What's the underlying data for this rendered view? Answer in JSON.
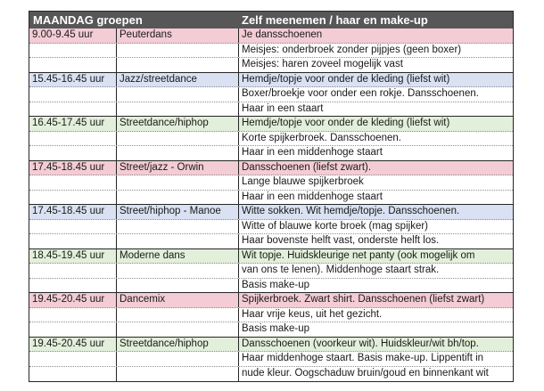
{
  "table": {
    "header": {
      "left": "MAANDAG groepen",
      "right": "Zelf meenemen / haar en make-up"
    },
    "colors": {
      "header_bg": "#575757",
      "header_text": "#ffffff",
      "pink": "#f3ccd5",
      "blue": "#d9e1f2",
      "green": "#e2efda",
      "white": "#ffffff"
    },
    "rows": [
      {
        "time": "9.00-9.45 uur",
        "group": "Peuterdans",
        "item": "Je dansschoenen",
        "fill": "pink",
        "group_start": true
      },
      {
        "time": "",
        "group": "",
        "item": "Meisjes: onderbroek zonder pijpjes (geen boxer)",
        "fill": "white"
      },
      {
        "time": "",
        "group": "",
        "item": "Meisjes: haren zoveel mogelijk vast",
        "fill": "white"
      },
      {
        "time": "15.45-16.45 uur",
        "group": "Jazz/streetdance",
        "item": "Hemdje/topje voor onder de kleding (liefst wit)",
        "fill": "blue",
        "group_start": true
      },
      {
        "time": "",
        "group": "",
        "item": "Boxer/broekje voor onder een rokje. Dansschoenen.",
        "fill": "white"
      },
      {
        "time": "",
        "group": "",
        "item": "Haar in een staart",
        "fill": "white"
      },
      {
        "time": "16.45-17.45 uur",
        "group": "Streetdance/hiphop",
        "item": "Hemdje/topje voor onder de kleding (liefst wit)",
        "fill": "green",
        "group_start": true
      },
      {
        "time": "",
        "group": "",
        "item": "Korte spijkerbroek. Dansschoenen.",
        "fill": "white"
      },
      {
        "time": "",
        "group": "",
        "item": "Haar in een middenhoge staart",
        "fill": "white"
      },
      {
        "time": "17.45-18.45 uur",
        "group": "Street/jazz - Orwin",
        "item": "Dansschoenen (liefst zwart).",
        "fill": "pink",
        "group_start": true
      },
      {
        "time": "",
        "group": "",
        "item": "Lange blauwe spijkerbroek",
        "fill": "white"
      },
      {
        "time": "",
        "group": "",
        "item": "Haar in een middenhoge staart",
        "fill": "white"
      },
      {
        "time": "17.45-18.45 uur",
        "group": "Street/hiphop - Manoe",
        "item": "Witte sokken. Wit hemdje/topje. Dansschoenen.",
        "fill": "blue",
        "group_start": true
      },
      {
        "time": "",
        "group": "",
        "item": "Witte of blauwe korte broek (mag spijker)",
        "fill": "white"
      },
      {
        "time": "",
        "group": "",
        "item": "Haar bovenste helft vast, onderste helft los.",
        "fill": "white"
      },
      {
        "time": "18.45-19.45 uur",
        "group": "Moderne dans",
        "item": "Wit topje. Huidskleurige net panty (ook mogelijk om",
        "fill": "green",
        "group_start": true
      },
      {
        "time": "",
        "group": "",
        "item": "van ons te lenen). Middenhoge staart strak.",
        "fill": "white"
      },
      {
        "time": "",
        "group": "",
        "item": "Basis make-up",
        "fill": "white"
      },
      {
        "time": "19.45-20.45 uur",
        "group": "Dancemix",
        "item": "Spijkerbroek. Zwart shirt. Dansschoenen (liefst zwart)",
        "fill": "pink",
        "group_start": true
      },
      {
        "time": "",
        "group": "",
        "item": "Haar vrije keus, uit het gezicht.",
        "fill": "white"
      },
      {
        "time": "",
        "group": "",
        "item": "Basis make-up",
        "fill": "white"
      },
      {
        "time": "19.45-20.45 uur",
        "group": "Streetdance/hiphop",
        "item": "Dansschoenen (voorkeur wit). Huidskleur/wit bh/top.",
        "fill": "green",
        "group_start": true
      },
      {
        "time": "",
        "group": "",
        "item": "Haar middenhoge staart. Basis make-up. Lippentift in",
        "fill": "white"
      },
      {
        "time": "",
        "group": "",
        "item": "nude kleur. Oogschaduw bruin/goud en binnenkant wit",
        "fill": "white"
      }
    ]
  }
}
